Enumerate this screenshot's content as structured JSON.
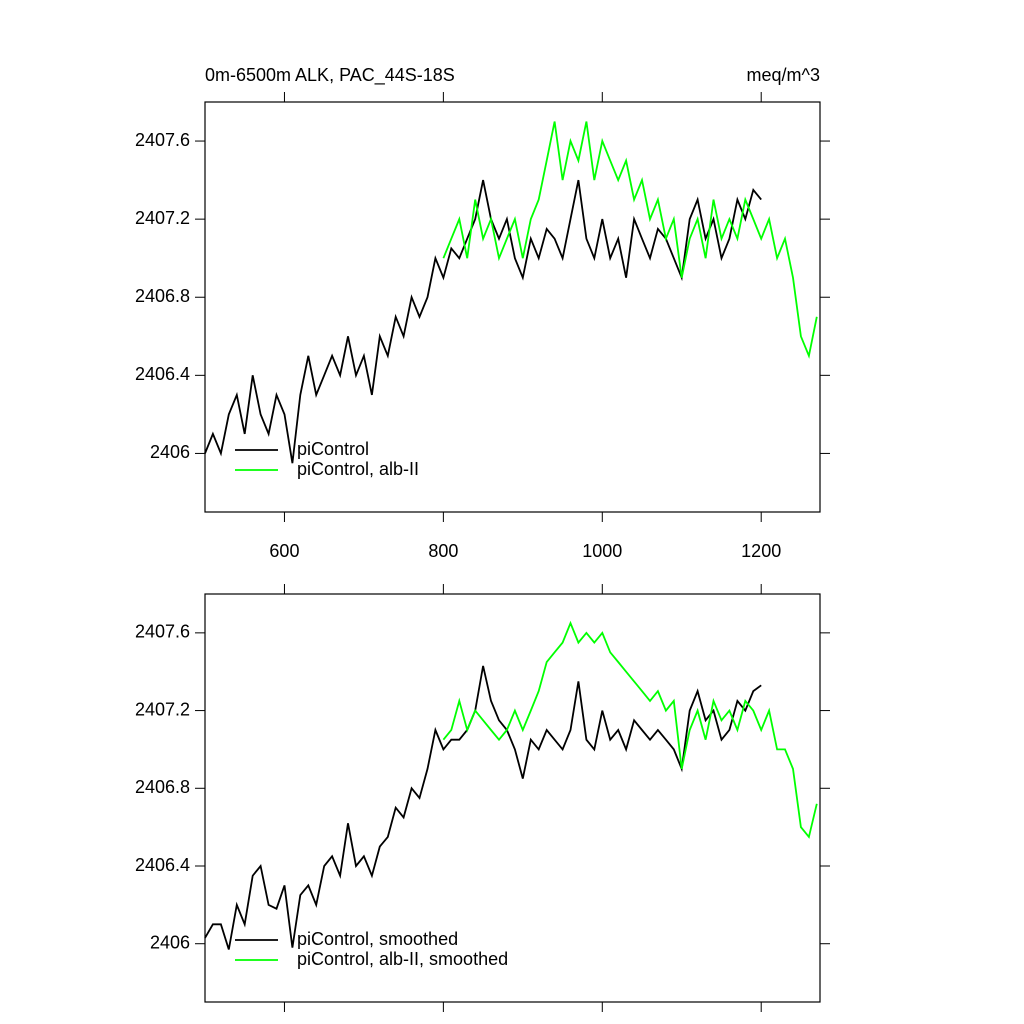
{
  "chart_data": [
    {
      "type": "line",
      "title": "0m-6500m ALK, PAC_44S-18S",
      "unit_label": "meq/m^3",
      "xlim": [
        500,
        1274
      ],
      "ylim": [
        2405.7,
        2407.8
      ],
      "xticks": [
        600,
        800,
        1000,
        1200
      ],
      "yticks": [
        2406.0,
        2406.4,
        2406.8,
        2407.2,
        2407.6
      ],
      "show_xtick_labels": true,
      "legend": "lower left",
      "series": [
        {
          "name": "piControl",
          "color": "#000000",
          "x": [
            500,
            510,
            520,
            530,
            540,
            550,
            560,
            570,
            580,
            590,
            600,
            610,
            620,
            630,
            640,
            650,
            660,
            670,
            680,
            690,
            700,
            710,
            720,
            730,
            740,
            750,
            760,
            770,
            780,
            790,
            800,
            810,
            820,
            830,
            840,
            850,
            860,
            870,
            880,
            890,
            900,
            910,
            920,
            930,
            940,
            950,
            960,
            970,
            980,
            990,
            1000,
            1010,
            1020,
            1030,
            1040,
            1050,
            1060,
            1070,
            1080,
            1090,
            1100,
            1110,
            1120,
            1130,
            1140,
            1150,
            1160,
            1170,
            1180,
            1190,
            1200
          ],
          "values": [
            2406.0,
            2406.1,
            2406.0,
            2406.2,
            2406.3,
            2406.1,
            2406.4,
            2406.2,
            2406.1,
            2406.3,
            2406.2,
            2405.95,
            2406.3,
            2406.5,
            2406.3,
            2406.4,
            2406.5,
            2406.4,
            2406.6,
            2406.4,
            2406.5,
            2406.3,
            2406.6,
            2406.5,
            2406.7,
            2406.6,
            2406.8,
            2406.7,
            2406.8,
            2407.0,
            2406.9,
            2407.05,
            2407.0,
            2407.1,
            2407.2,
            2407.4,
            2407.2,
            2407.1,
            2407.2,
            2407.0,
            2406.9,
            2407.1,
            2407.0,
            2407.15,
            2407.1,
            2407.0,
            2407.2,
            2407.4,
            2407.1,
            2407.0,
            2407.2,
            2407.0,
            2407.1,
            2406.9,
            2407.2,
            2407.1,
            2407.0,
            2407.15,
            2407.1,
            2407.0,
            2406.9,
            2407.2,
            2407.3,
            2407.1,
            2407.2,
            2407.0,
            2407.1,
            2407.3,
            2407.2,
            2407.35,
            2407.3
          ]
        },
        {
          "name": "piControl, alb-II",
          "color": "#00ff00",
          "x": [
            800,
            810,
            820,
            830,
            840,
            850,
            860,
            870,
            880,
            890,
            900,
            910,
            920,
            930,
            940,
            950,
            960,
            970,
            980,
            990,
            1000,
            1010,
            1020,
            1030,
            1040,
            1050,
            1060,
            1070,
            1080,
            1090,
            1100,
            1110,
            1120,
            1130,
            1140,
            1150,
            1160,
            1170,
            1180,
            1190,
            1200,
            1210,
            1220,
            1230,
            1240,
            1250,
            1260,
            1270
          ],
          "values": [
            2407.0,
            2407.1,
            2407.2,
            2407.0,
            2407.3,
            2407.1,
            2407.2,
            2407.0,
            2407.1,
            2407.2,
            2407.0,
            2407.2,
            2407.3,
            2407.5,
            2407.7,
            2407.4,
            2407.6,
            2407.5,
            2407.7,
            2407.4,
            2407.6,
            2407.5,
            2407.4,
            2407.5,
            2407.3,
            2407.4,
            2407.2,
            2407.3,
            2407.1,
            2407.2,
            2406.9,
            2407.1,
            2407.2,
            2407.0,
            2407.3,
            2407.1,
            2407.2,
            2407.1,
            2407.3,
            2407.2,
            2407.1,
            2407.2,
            2407.0,
            2407.1,
            2406.9,
            2406.6,
            2406.5,
            2406.7
          ]
        }
      ]
    },
    {
      "type": "line",
      "xlim": [
        500,
        1274
      ],
      "ylim": [
        2405.7,
        2407.8
      ],
      "xticks": [
        600,
        800,
        1000,
        1200
      ],
      "yticks": [
        2406.0,
        2406.4,
        2406.8,
        2407.2,
        2407.6
      ],
      "show_xtick_labels": false,
      "legend": "lower left",
      "series": [
        {
          "name": "piControl, smoothed",
          "color": "#000000",
          "x": [
            500,
            510,
            520,
            530,
            540,
            550,
            560,
            570,
            580,
            590,
            600,
            610,
            620,
            630,
            640,
            650,
            660,
            670,
            680,
            690,
            700,
            710,
            720,
            730,
            740,
            750,
            760,
            770,
            780,
            790,
            800,
            810,
            820,
            830,
            840,
            850,
            860,
            870,
            880,
            890,
            900,
            910,
            920,
            930,
            940,
            950,
            960,
            970,
            980,
            990,
            1000,
            1010,
            1020,
            1030,
            1040,
            1050,
            1060,
            1070,
            1080,
            1090,
            1100,
            1110,
            1120,
            1130,
            1140,
            1150,
            1160,
            1170,
            1180,
            1190,
            1200
          ],
          "values": [
            2406.03,
            2406.1,
            2406.1,
            2405.97,
            2406.2,
            2406.1,
            2406.35,
            2406.4,
            2406.2,
            2406.18,
            2406.3,
            2405.98,
            2406.25,
            2406.3,
            2406.2,
            2406.4,
            2406.45,
            2406.35,
            2406.62,
            2406.4,
            2406.45,
            2406.35,
            2406.5,
            2406.55,
            2406.7,
            2406.65,
            2406.8,
            2406.75,
            2406.9,
            2407.1,
            2407.0,
            2407.05,
            2407.05,
            2407.1,
            2407.2,
            2407.43,
            2407.25,
            2407.15,
            2407.1,
            2407.0,
            2406.85,
            2407.05,
            2407.0,
            2407.1,
            2407.05,
            2407.0,
            2407.1,
            2407.35,
            2407.05,
            2407.0,
            2407.2,
            2407.05,
            2407.1,
            2407.0,
            2407.15,
            2407.1,
            2407.05,
            2407.1,
            2407.05,
            2407.0,
            2406.9,
            2407.2,
            2407.3,
            2407.15,
            2407.2,
            2407.05,
            2407.1,
            2407.25,
            2407.2,
            2407.3,
            2407.33
          ]
        },
        {
          "name": "piControl, alb-II, smoothed",
          "color": "#00ff00",
          "x": [
            800,
            810,
            820,
            830,
            840,
            850,
            860,
            870,
            880,
            890,
            900,
            910,
            920,
            930,
            940,
            950,
            960,
            970,
            980,
            990,
            1000,
            1010,
            1020,
            1030,
            1040,
            1050,
            1060,
            1070,
            1080,
            1090,
            1100,
            1110,
            1120,
            1130,
            1140,
            1150,
            1160,
            1170,
            1180,
            1190,
            1200,
            1210,
            1220,
            1230,
            1240,
            1250,
            1260,
            1270
          ],
          "values": [
            2407.05,
            2407.1,
            2407.25,
            2407.1,
            2407.2,
            2407.15,
            2407.1,
            2407.05,
            2407.1,
            2407.2,
            2407.1,
            2407.2,
            2407.3,
            2407.45,
            2407.5,
            2407.55,
            2407.65,
            2407.55,
            2407.6,
            2407.55,
            2407.6,
            2407.5,
            2407.45,
            2407.4,
            2407.35,
            2407.3,
            2407.25,
            2407.3,
            2407.2,
            2407.25,
            2406.9,
            2407.1,
            2407.2,
            2407.05,
            2407.25,
            2407.15,
            2407.2,
            2407.1,
            2407.25,
            2407.2,
            2407.1,
            2407.2,
            2407.0,
            2407.0,
            2406.9,
            2406.6,
            2406.55,
            2406.72
          ]
        }
      ]
    }
  ]
}
